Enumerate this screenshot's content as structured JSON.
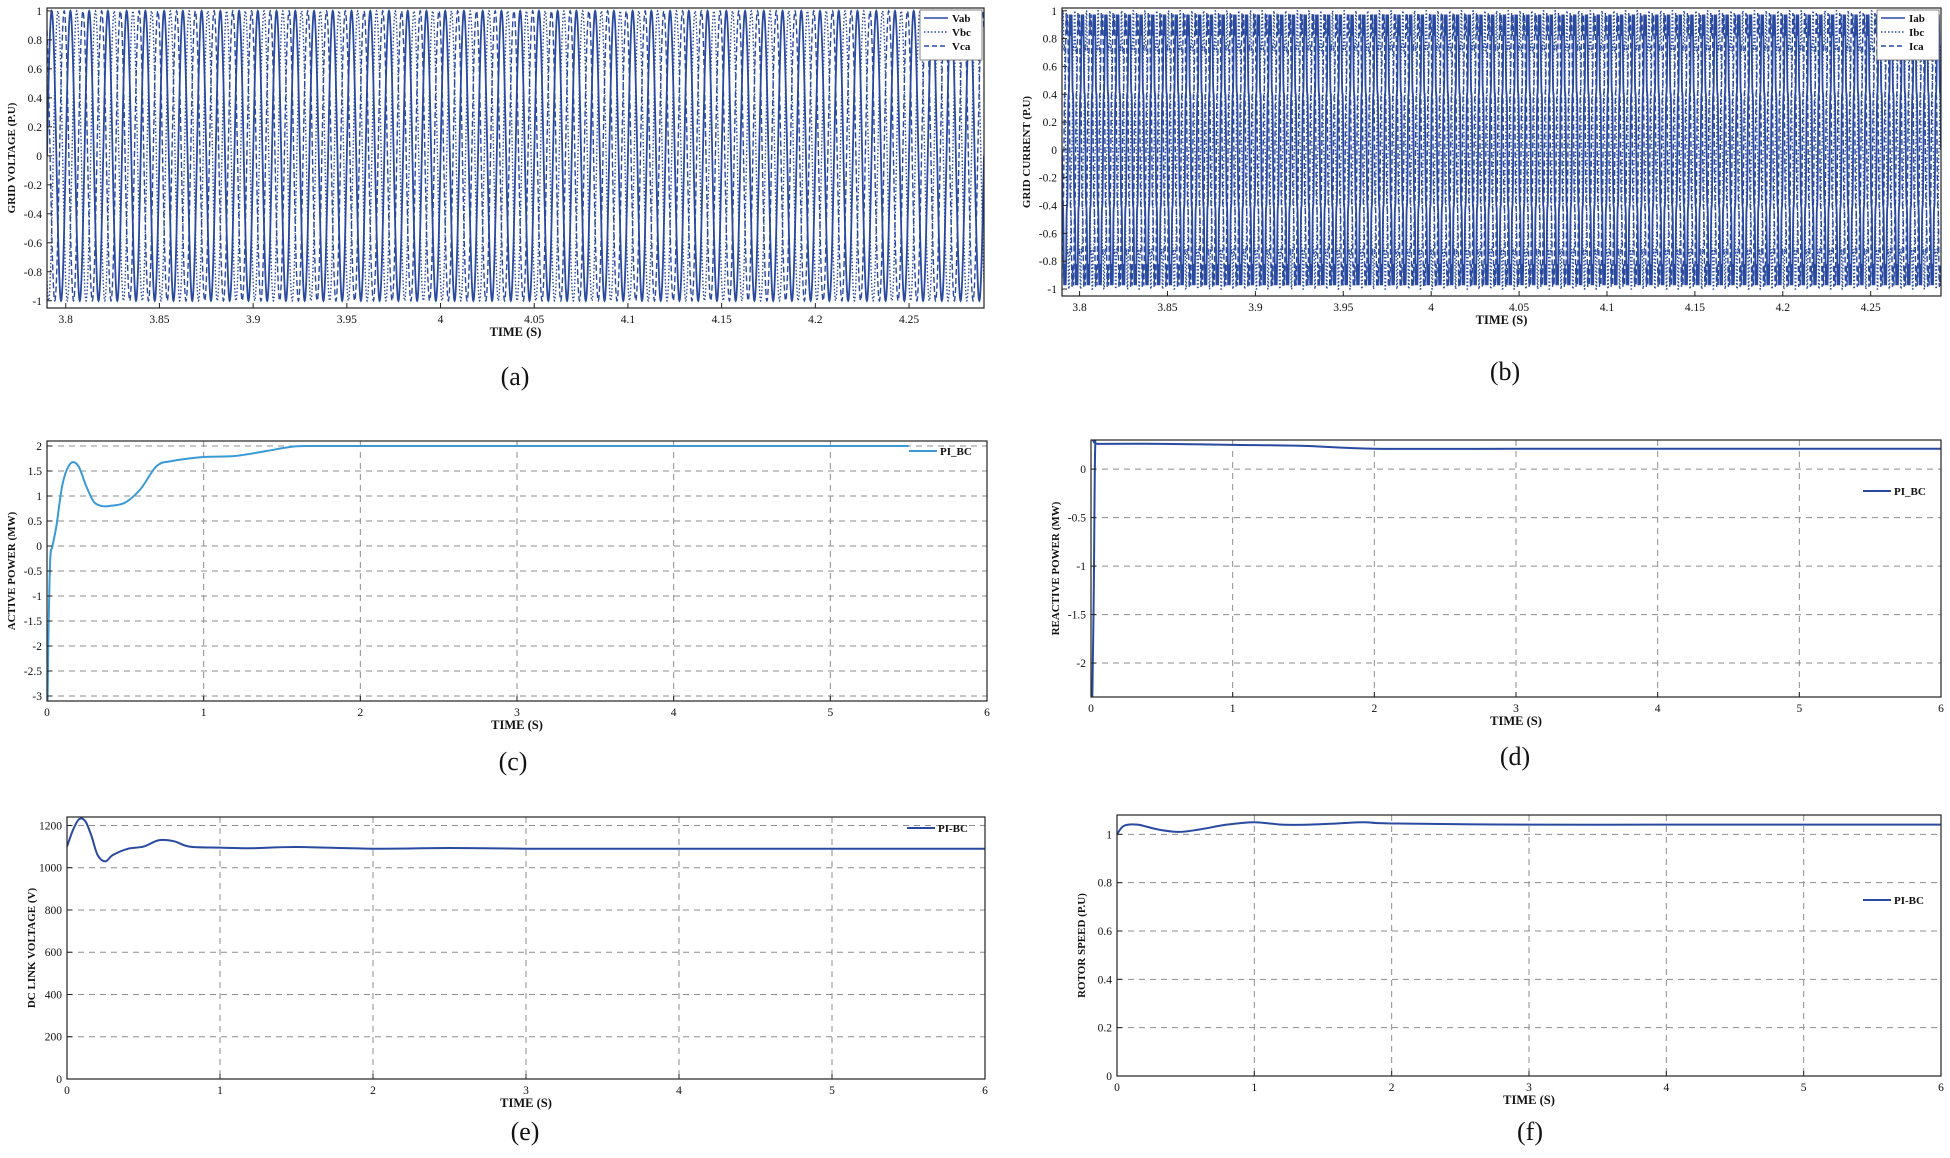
{
  "chart_data": [
    {
      "id": "a",
      "type": "line",
      "caption": "(a)",
      "xlabel": "TIME (S)",
      "ylabel": "GRID VOLTAGE (P.U)",
      "xlim": [
        3.79,
        4.29
      ],
      "ylim": [
        -1.05,
        1.02
      ],
      "xticks": [
        3.8,
        3.85,
        3.9,
        3.95,
        4,
        4.05,
        4.1,
        4.15,
        4.2,
        4.25
      ],
      "yticks": [
        -1,
        -0.8,
        -0.6,
        -0.4,
        -0.2,
        0,
        0.2,
        0.4,
        0.6,
        0.8,
        1
      ],
      "grid": false,
      "legend": "top-right",
      "signal": {
        "waveform": "sine",
        "frequency_hz": 100,
        "amplitude": 1,
        "phase_shift_deg": 120
      },
      "series": [
        {
          "name": "Vab",
          "style": "solid",
          "phase_deg": 0
        },
        {
          "name": "Vbc",
          "style": "dotted",
          "phase_deg": -120
        },
        {
          "name": "Vca",
          "style": "dashed",
          "phase_deg": 120
        }
      ]
    },
    {
      "id": "b",
      "type": "line",
      "caption": "(b)",
      "xlabel": "TIME (S)",
      "ylabel": "GRID CURRENT (P.U)",
      "xlim": [
        3.79,
        4.29
      ],
      "ylim": [
        -1.05,
        1.02
      ],
      "xticks": [
        3.8,
        3.85,
        3.9,
        3.95,
        4,
        4.05,
        4.1,
        4.15,
        4.2,
        4.25
      ],
      "yticks": [
        -1,
        -0.8,
        -0.6,
        -0.4,
        -0.2,
        0,
        0.2,
        0.4,
        0.6,
        0.8,
        1
      ],
      "grid": false,
      "legend": "top-right",
      "signal": {
        "waveform": "sine",
        "frequency_hz": 150,
        "amplitude": 1,
        "phase_shift_deg": 120,
        "ripple": 0.12
      },
      "series": [
        {
          "name": "Iab",
          "style": "solid",
          "phase_deg": 0
        },
        {
          "name": "Ibc",
          "style": "dotted",
          "phase_deg": -120
        },
        {
          "name": "Ica",
          "style": "dashed",
          "phase_deg": 120
        }
      ]
    },
    {
      "id": "c",
      "type": "line",
      "caption": "(c)",
      "xlabel": "TIME (S)",
      "ylabel": "ACTIVE POWER (MW)",
      "xlim": [
        0,
        6
      ],
      "ylim": [
        -3.1,
        2.1
      ],
      "xticks": [
        0,
        1,
        2,
        3,
        4,
        5,
        6
      ],
      "yticks": [
        -3,
        -2.5,
        -2,
        -1.5,
        -1,
        -0.5,
        0,
        0.5,
        1,
        1.5,
        2
      ],
      "grid": true,
      "legend": "top-right",
      "series": [
        {
          "name": "PI_BC",
          "color": "#3a9ad6",
          "x": [
            0,
            0.004,
            0.008,
            0.02,
            0.035,
            0.06,
            0.1,
            0.15,
            0.2,
            0.25,
            0.3,
            0.35,
            0.4,
            0.5,
            0.6,
            0.7,
            0.8,
            1.0,
            1.2,
            1.4,
            1.55,
            1.65,
            2.0,
            3.0,
            4.0,
            5.0,
            5.5
          ],
          "values": [
            -3.0,
            -3.05,
            -2.0,
            -0.3,
            0.0,
            0.4,
            1.25,
            1.65,
            1.6,
            1.2,
            0.88,
            0.8,
            0.8,
            0.87,
            1.15,
            1.6,
            1.7,
            1.78,
            1.8,
            1.9,
            1.98,
            2.0,
            2.0,
            2.0,
            2.0,
            2.0,
            2.0
          ]
        }
      ]
    },
    {
      "id": "d",
      "type": "line",
      "caption": "(d)",
      "xlabel": "TIME (S)",
      "ylabel": "REACTIVE POWER (MW)",
      "xlim": [
        0,
        6
      ],
      "ylim": [
        -2.35,
        0.3
      ],
      "xticks": [
        0,
        1,
        2,
        3,
        4,
        5,
        6
      ],
      "yticks": [
        -2,
        -1.5,
        -1,
        -0.5,
        0
      ],
      "grid": true,
      "legend": "top-right",
      "series": [
        {
          "name": "PI_BC",
          "color": "#2a4aa0",
          "x": [
            0,
            0.01,
            0.02,
            0.03,
            0.05,
            0.5,
            1.0,
            1.5,
            2.0,
            3.0,
            4.0,
            5.0,
            6.0
          ],
          "values": [
            -2.3,
            -2.3,
            -1.2,
            0.25,
            0.26,
            0.26,
            0.25,
            0.24,
            0.21,
            0.21,
            0.21,
            0.21,
            0.21
          ]
        }
      ]
    },
    {
      "id": "e",
      "type": "line",
      "caption": "(e)",
      "xlabel": "TIME (S)",
      "ylabel": "DC LINK VOLTAGE (V)",
      "xlim": [
        0,
        6
      ],
      "ylim": [
        0,
        1240
      ],
      "xticks": [
        0,
        1,
        2,
        3,
        4,
        5,
        6
      ],
      "yticks": [
        0,
        200,
        400,
        600,
        800,
        1000,
        1200
      ],
      "grid": true,
      "legend": "top-right",
      "series": [
        {
          "name": "PI-BC",
          "color": "#2a4aa0",
          "x": [
            0,
            0.04,
            0.08,
            0.12,
            0.16,
            0.2,
            0.25,
            0.3,
            0.4,
            0.5,
            0.6,
            0.7,
            0.8,
            1.0,
            1.2,
            1.5,
            2.0,
            2.5,
            3.0,
            4.0,
            5.0,
            6.0
          ],
          "values": [
            1100,
            1180,
            1230,
            1220,
            1150,
            1060,
            1030,
            1060,
            1090,
            1100,
            1130,
            1125,
            1100,
            1095,
            1092,
            1098,
            1090,
            1093,
            1090,
            1090,
            1090,
            1090
          ]
        }
      ]
    },
    {
      "id": "f",
      "type": "line",
      "caption": "(f)",
      "xlabel": "TIME (S)",
      "ylabel": "ROTOR SPEED (P.U)",
      "xlim": [
        0,
        6
      ],
      "ylim": [
        0,
        1.08
      ],
      "xticks": [
        0,
        1,
        2,
        3,
        4,
        5,
        6
      ],
      "yticks": [
        0,
        0.2,
        0.4,
        0.6,
        0.8,
        1
      ],
      "grid": true,
      "legend": "top-right",
      "series": [
        {
          "name": "PI-BC",
          "color": "#2a4aa0",
          "x": [
            0,
            0.05,
            0.15,
            0.3,
            0.45,
            0.6,
            0.8,
            1.0,
            1.2,
            1.4,
            1.6,
            1.8,
            2.0,
            3.0,
            4.0,
            5.0,
            6.0
          ],
          "values": [
            1.0,
            1.035,
            1.04,
            1.02,
            1.01,
            1.02,
            1.04,
            1.05,
            1.04,
            1.04,
            1.045,
            1.05,
            1.045,
            1.04,
            1.04,
            1.04,
            1.04
          ]
        }
      ]
    }
  ]
}
